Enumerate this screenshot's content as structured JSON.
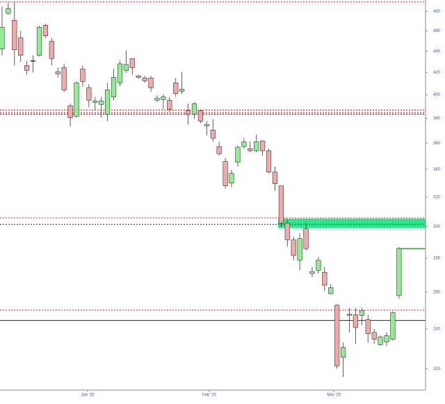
{
  "chart_data": {
    "type": "candlestick",
    "log_scale": true,
    "ylim": [
      210,
      492
    ],
    "yticks": [
      220,
      240,
      260,
      280,
      300,
      320,
      340,
      360,
      380,
      400,
      420,
      440,
      460,
      480
    ],
    "xticks": [
      {
        "value": 13.8,
        "label": "Jan '25"
      },
      {
        "value": 33.4,
        "label": "Feb '25"
      },
      {
        "value": 53.5,
        "label": "Mar '25"
      }
    ],
    "up_color": "#90ee90",
    "down_color": "#f4a9a9",
    "edge_color": "#333333",
    "tick_color": "#3a5a9c",
    "open": [
      442.1,
      477.9,
      470.7,
      453,
      426.5,
      431,
      436,
      465.7,
      449.6,
      420.6,
      424.5,
      390.6,
      381.8,
      423.2,
      406.2,
      393.5,
      391.8,
      383.5,
      398.2,
      410.6,
      422,
      433,
      416.9,
      415,
      415,
      395.3,
      395.9,
      395.3,
      410.6,
      403.1,
      386.5,
      383.5,
      386.5,
      373.9,
      370.5,
      357.3,
      345.9,
      330,
      345.4,
      357.3,
      355.7,
      354.1,
      361.7,
      354.1,
      338,
      328,
      302.4,
      291.5,
      278.8,
      298.7,
      270.8,
      272.8,
      271.6,
      259.2,
      252.8,
      225.6,
      247.2,
      247.5,
      247.2,
      244.9,
      238.2,
      231.9,
      233.3,
      234.7,
      258.1
    ],
    "high": [
      485,
      489,
      490,
      460,
      431,
      436,
      465,
      467,
      453,
      424.5,
      428,
      392.4,
      411.9,
      426.5,
      409.4,
      398.2,
      398.2,
      410.6,
      423.2,
      431,
      440.7,
      433,
      418,
      416.9,
      416.9,
      399.4,
      400.6,
      398.2,
      415,
      420.6,
      392.4,
      393.5,
      387.6,
      377.8,
      379.4,
      361.1,
      348.6,
      339.5,
      358.4,
      363.9,
      361.1,
      366.7,
      362.2,
      355.7,
      342,
      328,
      304.6,
      293.6,
      295.7,
      302.4,
      274.8,
      280.9,
      274.8,
      264.7,
      253.2,
      233,
      251.3,
      251.3,
      251.3,
      247.5,
      240,
      236.5,
      238.2,
      249.4,
      286.9
    ],
    "low": [
      436,
      476.5,
      426.5,
      429.7,
      418,
      420,
      435,
      453,
      426.5,
      415.6,
      402.5,
      373.3,
      380.6,
      407.5,
      389.4,
      386.5,
      380.6,
      377.8,
      395.3,
      407.5,
      419.4,
      418,
      414.4,
      410.6,
      402.5,
      393.5,
      387.6,
      385.3,
      398.2,
      400.6,
      375,
      379.4,
      376.1,
      366.1,
      361.1,
      350.3,
      326,
      327,
      342.2,
      355.7,
      353,
      353,
      350.3,
      337,
      324.5,
      300,
      287.2,
      278.8,
      272.8,
      284.8,
      268.8,
      270.8,
      260.8,
      258.9,
      220,
      216.1,
      238.2,
      232.3,
      241.9,
      233,
      232.3,
      231.3,
      231.3,
      234,
      256.3
    ],
    "close": [
      463.6,
      483,
      441.4,
      436,
      422,
      431,
      463.6,
      455,
      433,
      418.8,
      404.4,
      380.6,
      410.6,
      411.9,
      395.3,
      394.7,
      394.7,
      404.4,
      415.6,
      428,
      427.4,
      424.5,
      415.6,
      412.5,
      406.2,
      397.1,
      398.2,
      387.6,
      401.2,
      405,
      383.5,
      392.4,
      377.8,
      375,
      363.9,
      351.9,
      328,
      337,
      356.8,
      361.1,
      354.1,
      361.1,
      354.1,
      338,
      329.5,
      302.4,
      291.5,
      281.7,
      292.3,
      286,
      272,
      278.8,
      264,
      262.6,
      221.4,
      230.5,
      247.9,
      240.7,
      249.8,
      237.5,
      234.7,
      235.8,
      236.5,
      248.7,
      286
    ],
    "levels": [
      {
        "value": 490,
        "color": "#d62728",
        "dash": "2,2"
      },
      {
        "value": 387,
        "color": "#d62728",
        "dash": "2,2"
      },
      {
        "value": 384.7,
        "color": "#d62728",
        "dash": "2,2"
      },
      {
        "value": 383.5,
        "color": "#222222",
        "dash": "2,2"
      },
      {
        "value": 305.8,
        "color": "#d62728",
        "dash": "2,2"
      },
      {
        "value": 301.5,
        "color": "#222222",
        "dash": "2,2"
      },
      {
        "value": 250,
        "color": "#d62728",
        "dash": "2,2"
      },
      {
        "value": 244.5,
        "color": "#222222",
        "dash": "none"
      },
      {
        "value": 286,
        "color": "#138a13",
        "dash": "none",
        "from": 64
      }
    ],
    "zone": {
      "from_index": 44.5,
      "low": 299.1,
      "high": 305.3,
      "color": "#00e676"
    }
  }
}
